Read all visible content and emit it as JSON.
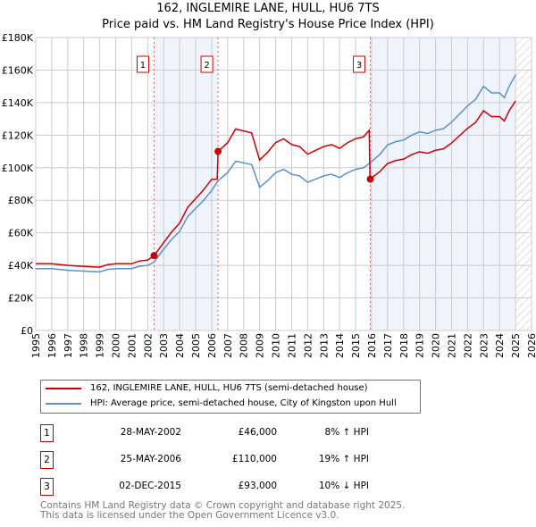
{
  "chart_data": {
    "type": "line",
    "title": "162, INGLEMIRE LANE, HULL, HU6 7TS",
    "subtitle": "Price paid vs. HM Land Registry's House Price Index (HPI)",
    "xlim": [
      1995,
      2026
    ],
    "ylim": [
      0,
      180000
    ],
    "x_ticks": [
      "1995",
      "1996",
      "1997",
      "1998",
      "1999",
      "2000",
      "2001",
      "2002",
      "2003",
      "2004",
      "2005",
      "2006",
      "2007",
      "2008",
      "2009",
      "2010",
      "2011",
      "2012",
      "2013",
      "2014",
      "2015",
      "2016",
      "2017",
      "2018",
      "2019",
      "2020",
      "2021",
      "2022",
      "2023",
      "2024",
      "2025",
      "2026"
    ],
    "y_ticks": [
      "£0",
      "£20K",
      "£40K",
      "£60K",
      "£80K",
      "£100K",
      "£120K",
      "£140K",
      "£160K",
      "£180K"
    ],
    "grid": true,
    "shaded_periods": [
      [
        2002.4,
        2006.4
      ],
      [
        2015.9,
        2025.0
      ]
    ],
    "forecast_hatch_from": 2025.0,
    "series": [
      {
        "name": "162, INGLEMIRE LANE, HULL, HU6 7TS (semi-detached house)",
        "color": "#cc0000",
        "points": [
          [
            1995,
            41
          ],
          [
            1996,
            41
          ],
          [
            1997,
            40
          ],
          [
            1998,
            39.4
          ],
          [
            1999,
            38.9
          ],
          [
            1999.5,
            40.5
          ],
          [
            2000,
            41
          ],
          [
            2001,
            41
          ],
          [
            2001.5,
            42.7
          ],
          [
            2002,
            43.2
          ],
          [
            2002.4,
            46
          ],
          [
            2003,
            54
          ],
          [
            2003.5,
            60.5
          ],
          [
            2004,
            66
          ],
          [
            2004.5,
            75.6
          ],
          [
            2005,
            81
          ],
          [
            2005.5,
            86.4
          ],
          [
            2006,
            92.9
          ],
          [
            2006.35,
            93
          ],
          [
            2006.4,
            110
          ],
          [
            2007,
            115.4
          ],
          [
            2007.5,
            123.8
          ],
          [
            2008,
            122.6
          ],
          [
            2008.5,
            121.4
          ],
          [
            2009,
            104.7
          ],
          [
            2009.5,
            109.5
          ],
          [
            2010,
            115.4
          ],
          [
            2010.5,
            117.8
          ],
          [
            2011,
            114.2
          ],
          [
            2011.5,
            113
          ],
          [
            2012,
            108.3
          ],
          [
            2012.5,
            110.7
          ],
          [
            2013,
            113
          ],
          [
            2013.5,
            114.2
          ],
          [
            2014,
            111.9
          ],
          [
            2014.5,
            115.4
          ],
          [
            2015,
            117.8
          ],
          [
            2015.5,
            119
          ],
          [
            2015.85,
            123
          ],
          [
            2015.9,
            93
          ],
          [
            2016.5,
            97.5
          ],
          [
            2017,
            102.6
          ],
          [
            2017.5,
            104.4
          ],
          [
            2018,
            105.3
          ],
          [
            2018.5,
            108
          ],
          [
            2019,
            109.8
          ],
          [
            2019.5,
            108.9
          ],
          [
            2020,
            110.7
          ],
          [
            2020.5,
            111.6
          ],
          [
            2021,
            115.2
          ],
          [
            2021.5,
            119.7
          ],
          [
            2022,
            124.2
          ],
          [
            2022.5,
            127.8
          ],
          [
            2023,
            135
          ],
          [
            2023.5,
            131.4
          ],
          [
            2024,
            131.4
          ],
          [
            2024.3,
            128.7
          ],
          [
            2024.6,
            135
          ],
          [
            2025,
            141
          ]
        ]
      },
      {
        "name": "HPI: Average price, semi-detached house, City of Kingston upon Hull",
        "color": "#5b8fd0",
        "points": [
          [
            1995,
            38
          ],
          [
            1996,
            38
          ],
          [
            1997,
            37
          ],
          [
            1998,
            36.5
          ],
          [
            1999,
            36
          ],
          [
            1999.5,
            37.5
          ],
          [
            2000,
            38
          ],
          [
            2001,
            38
          ],
          [
            2001.5,
            39.5
          ],
          [
            2002,
            40
          ],
          [
            2002.4,
            42
          ],
          [
            2003,
            50
          ],
          [
            2003.5,
            56
          ],
          [
            2004,
            61
          ],
          [
            2004.5,
            70
          ],
          [
            2005,
            75
          ],
          [
            2005.5,
            80
          ],
          [
            2006,
            86
          ],
          [
            2006.4,
            92
          ],
          [
            2007,
            97
          ],
          [
            2007.5,
            104
          ],
          [
            2008,
            103
          ],
          [
            2008.5,
            102
          ],
          [
            2009,
            88
          ],
          [
            2009.5,
            92
          ],
          [
            2010,
            97
          ],
          [
            2010.5,
            99
          ],
          [
            2011,
            96
          ],
          [
            2011.5,
            95
          ],
          [
            2012,
            91
          ],
          [
            2012.5,
            93
          ],
          [
            2013,
            95
          ],
          [
            2013.5,
            96
          ],
          [
            2014,
            94
          ],
          [
            2014.5,
            97
          ],
          [
            2015,
            99
          ],
          [
            2015.5,
            100
          ],
          [
            2015.9,
            103
          ],
          [
            2016.5,
            108
          ],
          [
            2017,
            114
          ],
          [
            2017.5,
            116
          ],
          [
            2018,
            117
          ],
          [
            2018.5,
            120
          ],
          [
            2019,
            122
          ],
          [
            2019.5,
            121
          ],
          [
            2020,
            123
          ],
          [
            2020.5,
            124
          ],
          [
            2021,
            128
          ],
          [
            2021.5,
            133
          ],
          [
            2022,
            138
          ],
          [
            2022.5,
            142
          ],
          [
            2023,
            150
          ],
          [
            2023.5,
            146
          ],
          [
            2024,
            146
          ],
          [
            2024.3,
            143
          ],
          [
            2024.6,
            150
          ],
          [
            2025,
            157
          ]
        ]
      }
    ],
    "sales": [
      {
        "label": "1",
        "x": 2002.4,
        "y": 46000,
        "date": "28-MAY-2002",
        "price": "£46,000",
        "hpi": "8% ↑ HPI"
      },
      {
        "label": "2",
        "x": 2006.4,
        "y": 110000,
        "date": "25-MAY-2006",
        "price": "£110,000",
        "hpi": "19% ↑ HPI"
      },
      {
        "label": "3",
        "x": 2015.92,
        "y": 93000,
        "date": "02-DEC-2015",
        "price": "£93,000",
        "hpi": "10% ↓ HPI"
      }
    ]
  },
  "footer": {
    "line1": "Contains HM Land Registry data © Crown copyright and database right 2025.",
    "line2": "This data is licensed under the Open Government Licence v3.0."
  }
}
